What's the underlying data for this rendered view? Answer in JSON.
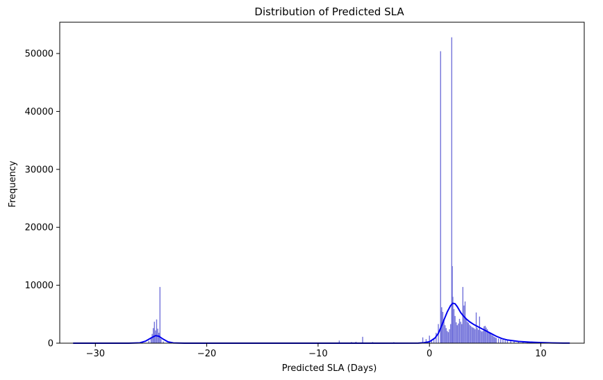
{
  "chart_data": {
    "type": "histogram",
    "title": "Distribution of Predicted SLA",
    "xlabel": "Predicted SLA (Days)",
    "ylabel": "Frequency",
    "xlim": [
      -33.2,
      13.9
    ],
    "ylim": [
      0,
      55400
    ],
    "xticks": [
      -30,
      -20,
      -10,
      0,
      10
    ],
    "yticks": [
      0,
      10000,
      20000,
      30000,
      40000,
      50000
    ],
    "grid": false,
    "colors": {
      "bar": "#6a6ad8",
      "kde": "#0000ee",
      "axes": "#000000"
    },
    "bars": [
      {
        "x": -25.2,
        "y": 400
      },
      {
        "x": -25.0,
        "y": 900
      },
      {
        "x": -24.9,
        "y": 1600
      },
      {
        "x": -24.8,
        "y": 2600
      },
      {
        "x": -24.7,
        "y": 3700
      },
      {
        "x": -24.6,
        "y": 2200
      },
      {
        "x": -24.5,
        "y": 4100
      },
      {
        "x": -24.4,
        "y": 2500
      },
      {
        "x": -24.3,
        "y": 1800
      },
      {
        "x": -24.2,
        "y": 9700
      },
      {
        "x": -24.1,
        "y": 700
      },
      {
        "x": -23.9,
        "y": 300
      },
      {
        "x": -8.1,
        "y": 450
      },
      {
        "x": -7.0,
        "y": 200
      },
      {
        "x": -6.6,
        "y": 250
      },
      {
        "x": -6.0,
        "y": 1100
      },
      {
        "x": -5.1,
        "y": 200
      },
      {
        "x": -3.2,
        "y": 180
      },
      {
        "x": -0.6,
        "y": 1000
      },
      {
        "x": -0.3,
        "y": 700
      },
      {
        "x": 0.0,
        "y": 1300
      },
      {
        "x": 0.2,
        "y": 400
      },
      {
        "x": 0.4,
        "y": 800
      },
      {
        "x": 0.6,
        "y": 1800
      },
      {
        "x": 0.8,
        "y": 3300
      },
      {
        "x": 1.0,
        "y": 50400
      },
      {
        "x": 1.05,
        "y": 5600
      },
      {
        "x": 1.1,
        "y": 6200
      },
      {
        "x": 1.2,
        "y": 5400
      },
      {
        "x": 1.3,
        "y": 4000
      },
      {
        "x": 1.4,
        "y": 3100
      },
      {
        "x": 1.5,
        "y": 2600
      },
      {
        "x": 1.6,
        "y": 2100
      },
      {
        "x": 1.7,
        "y": 1900
      },
      {
        "x": 1.8,
        "y": 2400
      },
      {
        "x": 1.9,
        "y": 3300
      },
      {
        "x": 2.0,
        "y": 52800
      },
      {
        "x": 2.05,
        "y": 13300
      },
      {
        "x": 2.1,
        "y": 8000
      },
      {
        "x": 2.2,
        "y": 5900
      },
      {
        "x": 2.3,
        "y": 4700
      },
      {
        "x": 2.4,
        "y": 3600
      },
      {
        "x": 2.5,
        "y": 3100
      },
      {
        "x": 2.6,
        "y": 3400
      },
      {
        "x": 2.7,
        "y": 4200
      },
      {
        "x": 2.8,
        "y": 3700
      },
      {
        "x": 2.9,
        "y": 3300
      },
      {
        "x": 3.0,
        "y": 9700
      },
      {
        "x": 3.1,
        "y": 6500
      },
      {
        "x": 3.2,
        "y": 7200
      },
      {
        "x": 3.3,
        "y": 4200
      },
      {
        "x": 3.4,
        "y": 3700
      },
      {
        "x": 3.5,
        "y": 3500
      },
      {
        "x": 3.6,
        "y": 3200
      },
      {
        "x": 3.7,
        "y": 3000
      },
      {
        "x": 3.8,
        "y": 2800
      },
      {
        "x": 3.9,
        "y": 2700
      },
      {
        "x": 4.0,
        "y": 2600
      },
      {
        "x": 4.1,
        "y": 2400
      },
      {
        "x": 4.2,
        "y": 5300
      },
      {
        "x": 4.3,
        "y": 2600
      },
      {
        "x": 4.4,
        "y": 2300
      },
      {
        "x": 4.5,
        "y": 4600
      },
      {
        "x": 4.6,
        "y": 2200
      },
      {
        "x": 4.7,
        "y": 2000
      },
      {
        "x": 4.8,
        "y": 2100
      },
      {
        "x": 4.9,
        "y": 2900
      },
      {
        "x": 5.0,
        "y": 3000
      },
      {
        "x": 5.1,
        "y": 2700
      },
      {
        "x": 5.2,
        "y": 2400
      },
      {
        "x": 5.3,
        "y": 2000
      },
      {
        "x": 5.4,
        "y": 1800
      },
      {
        "x": 5.5,
        "y": 1600
      },
      {
        "x": 5.6,
        "y": 1400
      },
      {
        "x": 5.7,
        "y": 1300
      },
      {
        "x": 5.8,
        "y": 1100
      },
      {
        "x": 5.9,
        "y": 1000
      },
      {
        "x": 6.0,
        "y": 900
      },
      {
        "x": 6.2,
        "y": 800
      },
      {
        "x": 6.4,
        "y": 700
      },
      {
        "x": 6.6,
        "y": 600
      },
      {
        "x": 6.8,
        "y": 500
      },
      {
        "x": 7.0,
        "y": 450
      },
      {
        "x": 7.3,
        "y": 380
      },
      {
        "x": 7.6,
        "y": 320
      },
      {
        "x": 8.0,
        "y": 260
      },
      {
        "x": 8.4,
        "y": 200
      },
      {
        "x": 8.8,
        "y": 150
      },
      {
        "x": 9.2,
        "y": 300
      },
      {
        "x": 9.6,
        "y": 120
      },
      {
        "x": 10.0,
        "y": 90
      },
      {
        "x": 10.5,
        "y": 60
      },
      {
        "x": 11.0,
        "y": 40
      }
    ],
    "kde": [
      [
        -32,
        0
      ],
      [
        -27,
        0
      ],
      [
        -26,
        60
      ],
      [
        -25.5,
        350
      ],
      [
        -25,
        900
      ],
      [
        -24.6,
        1300
      ],
      [
        -24.3,
        1200
      ],
      [
        -24,
        800
      ],
      [
        -23.5,
        250
      ],
      [
        -23,
        50
      ],
      [
        -22,
        0
      ],
      [
        -10,
        0
      ],
      [
        -5,
        0
      ],
      [
        -1,
        20
      ],
      [
        -0.5,
        80
      ],
      [
        0,
        250
      ],
      [
        0.5,
        900
      ],
      [
        0.8,
        1700
      ],
      [
        1.0,
        2600
      ],
      [
        1.3,
        4000
      ],
      [
        1.6,
        5400
      ],
      [
        1.9,
        6500
      ],
      [
        2.1,
        6900
      ],
      [
        2.3,
        6800
      ],
      [
        2.5,
        6300
      ],
      [
        2.8,
        5300
      ],
      [
        3.0,
        4800
      ],
      [
        3.3,
        4200
      ],
      [
        3.6,
        3700
      ],
      [
        4.0,
        3200
      ],
      [
        4.5,
        2700
      ],
      [
        5.0,
        2200
      ],
      [
        5.5,
        1700
      ],
      [
        6.0,
        1200
      ],
      [
        6.5,
        800
      ],
      [
        7.0,
        550
      ],
      [
        8.0,
        300
      ],
      [
        9.0,
        180
      ],
      [
        10.0,
        100
      ],
      [
        11.0,
        50
      ],
      [
        12.0,
        20
      ],
      [
        12.6,
        10
      ]
    ]
  }
}
